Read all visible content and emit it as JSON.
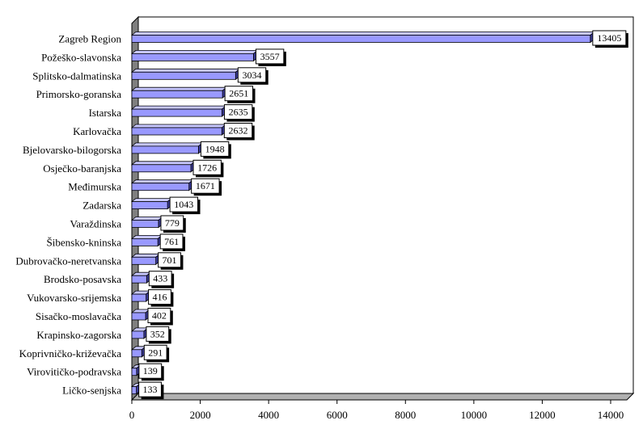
{
  "chart_data": {
    "type": "bar",
    "orientation": "horizontal",
    "categories": [
      "Zagreb Region",
      "Požeško-slavonska",
      "Splitsko-dalmatinska",
      "Primorsko-goranska",
      "Istarska",
      "Karlovačka",
      "Bjelovarsko-bilogorska",
      "Osječko-baranjska",
      "Međimurska",
      "Zadarska",
      "Varaždinska",
      "Šibensko-kninska",
      "Dubrovačko-neretvanska",
      "Brodsko-posavska",
      "Vukovarsko-srijemska",
      "Sisačko-moslavačka",
      "Krapinsko-zagorska",
      "Koprivničko-križevačka",
      "Virovitičko-podravska",
      "Ličko-senjska"
    ],
    "values": [
      13405,
      3557,
      3034,
      2651,
      2635,
      2632,
      1948,
      1726,
      1671,
      1043,
      779,
      761,
      701,
      433,
      416,
      402,
      352,
      291,
      139,
      133
    ],
    "value_labels": [
      "13405",
      "3557",
      "3034",
      "2651",
      "2635",
      "2632",
      "1948",
      "1726",
      "1671",
      "1043",
      "779",
      "761",
      "701",
      "433",
      "416",
      "402",
      "352",
      "291",
      "139",
      "133"
    ],
    "xlim": [
      0,
      14000
    ],
    "xticks": [
      0,
      2000,
      4000,
      6000,
      8000,
      10000,
      12000,
      14000
    ],
    "xtick_labels": [
      "0",
      "2000",
      "4000",
      "6000",
      "8000",
      "10000",
      "12000",
      "14000"
    ],
    "grid": false,
    "legend": "none",
    "colors": {
      "bar_face": "#9999ff",
      "bar_top": "#c8c8ff",
      "bar_end": "#3c3c9a",
      "wall": "#808080",
      "floor": "#b0b0b0"
    }
  }
}
